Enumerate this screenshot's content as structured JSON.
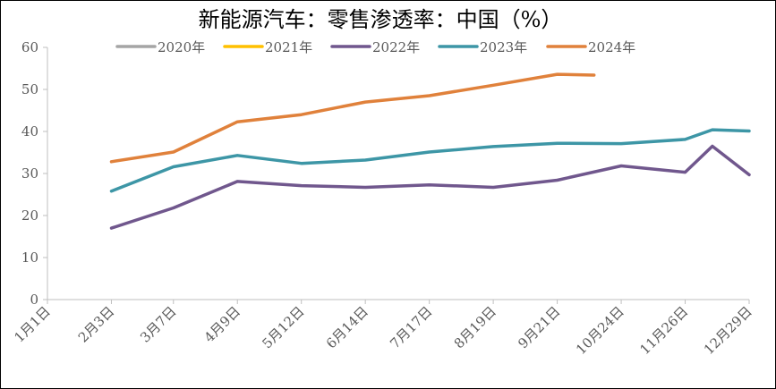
{
  "chart_data": {
    "type": "line",
    "title": "新能源汽车：零售渗透率：中国（%）",
    "xlabel": "",
    "ylabel": "",
    "ylim": [
      0,
      60
    ],
    "yticks": [
      "0",
      "10",
      "20",
      "30",
      "40",
      "50",
      "60"
    ],
    "categories": [
      "1月1日",
      "2月3日",
      "3月7日",
      "4月9日",
      "5月12日",
      "6月14日",
      "7月17日",
      "8月19日",
      "9月21日",
      "10月24日",
      "11月26日",
      "12月29日"
    ],
    "x": [
      1,
      34,
      66,
      99,
      132,
      165,
      198,
      231,
      264,
      297,
      330,
      363
    ],
    "legend": [
      "2020年",
      "2021年",
      "2022年",
      "2023年",
      "2024年"
    ],
    "series": [
      {
        "name": "2020年",
        "color": "#A5A5A5",
        "x": [],
        "values": []
      },
      {
        "name": "2021年",
        "color": "#FFC000",
        "x": [],
        "values": []
      },
      {
        "name": "2022年",
        "color": "#70578D",
        "x": [
          34,
          66,
          99,
          132,
          165,
          198,
          231,
          264,
          297,
          330,
          344,
          363
        ],
        "values": [
          17.0,
          21.8,
          28.1,
          27.1,
          26.7,
          27.3,
          26.7,
          28.4,
          31.8,
          30.3,
          36.5,
          29.7
        ]
      },
      {
        "name": "2023年",
        "color": "#3D96A6",
        "x": [
          34,
          66,
          99,
          132,
          165,
          198,
          231,
          264,
          297,
          330,
          344,
          363
        ],
        "values": [
          25.8,
          31.6,
          34.3,
          32.4,
          33.2,
          35.1,
          36.4,
          37.2,
          37.1,
          38.1,
          40.4,
          40.1
        ]
      },
      {
        "name": "2024年",
        "color": "#E0813B",
        "x": [
          34,
          66,
          99,
          132,
          165,
          198,
          231,
          264,
          283
        ],
        "values": [
          32.8,
          35.1,
          42.3,
          44.0,
          47.0,
          48.5,
          51.0,
          53.6,
          53.4
        ]
      }
    ]
  }
}
